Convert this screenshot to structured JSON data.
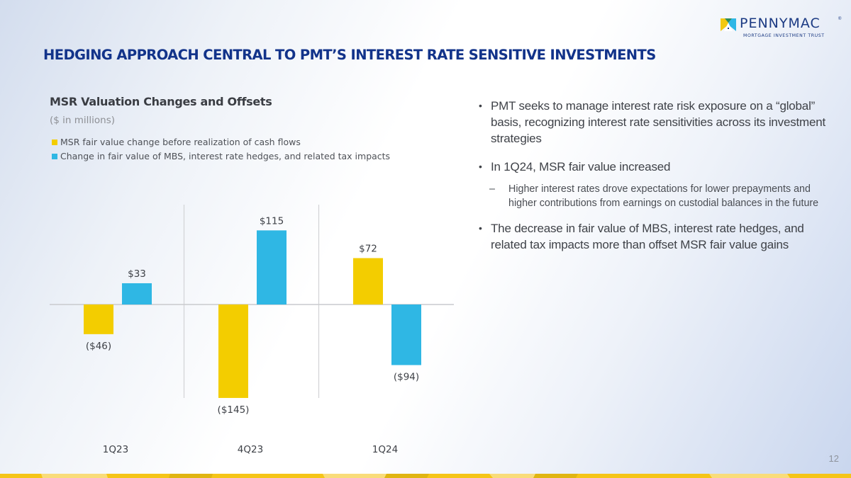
{
  "logo": {
    "wordmark": "PENNYMAC",
    "registered": "®",
    "tagline": "MORTGAGE INVESTMENT TRUST",
    "colors": {
      "yellow": "#f2c80f",
      "blue": "#2fb7e6",
      "green": "#2f8c5a",
      "navy": "#1b3a83"
    }
  },
  "slide": {
    "title": "HEDGING APPROACH CENTRAL TO PMT’S INTEREST RATE SENSITIVE INVESTMENTS",
    "page_number": "12"
  },
  "chart_data": {
    "type": "bar",
    "title": "MSR Valuation Changes and Offsets",
    "subtitle": "($ in millions)",
    "xlabel": "",
    "ylabel": "",
    "categories": [
      "1Q23",
      "4Q23",
      "1Q24"
    ],
    "series": [
      {
        "name": "MSR fair value change before realization of cash flows",
        "color": "#f3cd00",
        "values": [
          -46,
          -145,
          72
        ],
        "labels": [
          "($46)",
          "($145)",
          "$72"
        ]
      },
      {
        "name": "Change in fair value of MBS, interest rate hedges, and related tax impacts",
        "color": "#2fb7e4",
        "values": [
          33,
          115,
          -94
        ],
        "labels": [
          "$33",
          "$115",
          "($94)"
        ]
      }
    ],
    "ylim": [
      -160,
      155
    ],
    "grid": false,
    "legend_position": "top-left",
    "group_dividers": true
  },
  "bullets": [
    {
      "text": "PMT seeks to manage interest rate risk exposure on a “global” basis, recognizing interest rate sensitivities across its investment strategies",
      "sub": []
    },
    {
      "text": "In 1Q24, MSR fair value increased",
      "sub": [
        "Higher interest rates drove expectations for lower prepayments and higher contributions from earnings on custodial balances in the future"
      ]
    },
    {
      "text": "The decrease in fair value of MBS, interest rate hedges, and related tax impacts more than offset MSR fair value gains",
      "sub": []
    }
  ],
  "bullet_symbol": "•",
  "sub_bullet_symbol": "–",
  "theme": {
    "title_color": "#12338a",
    "stripe_yellow": "#f5c518"
  }
}
